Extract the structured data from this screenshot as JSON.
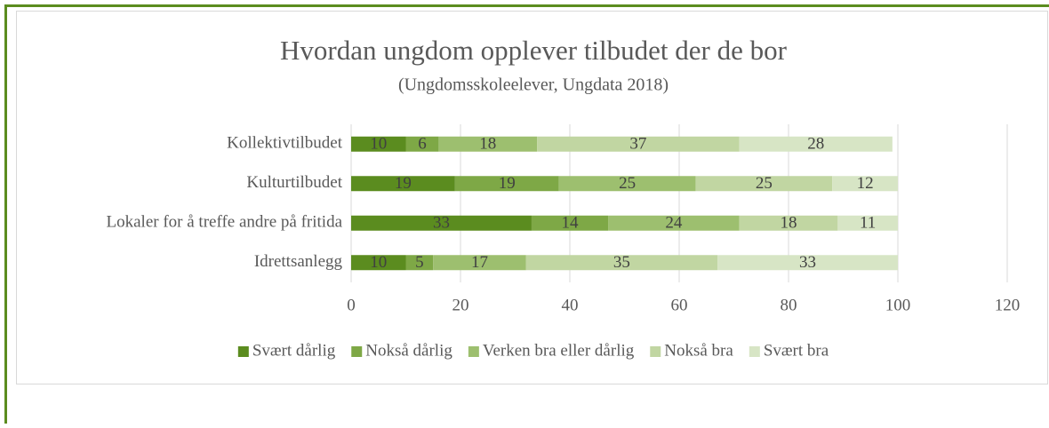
{
  "chart_data": {
    "type": "stacked_bar_horizontal",
    "title": "Hvordan ungdom opplever tilbudet der de bor",
    "subtitle": "(Ungdomsskoleelever, Ungdata 2018)",
    "categories": [
      "Kollektivtilbudet",
      "Kulturtilbudet",
      "Lokaler for å treffe andre på fritida",
      "Idrettsanlegg"
    ],
    "series": [
      {
        "name": "Svært dårlig",
        "color": "#5b8c1f",
        "values": [
          10,
          19,
          33,
          10
        ]
      },
      {
        "name": "Nokså dårlig",
        "color": "#7ea846",
        "values": [
          6,
          19,
          14,
          5
        ]
      },
      {
        "name": "Verken bra eller dårlig",
        "color": "#9dbf6f",
        "values": [
          18,
          25,
          24,
          17
        ]
      },
      {
        "name": "Nokså bra",
        "color": "#c1d6a2",
        "values": [
          37,
          25,
          18,
          35
        ]
      },
      {
        "name": "Svært bra",
        "color": "#d7e5c5",
        "values": [
          28,
          12,
          11,
          33
        ]
      }
    ],
    "xlim": [
      0,
      120
    ],
    "xticks": [
      0,
      20,
      40,
      60,
      80,
      100,
      120
    ],
    "grid": true,
    "legend": "bottom"
  }
}
